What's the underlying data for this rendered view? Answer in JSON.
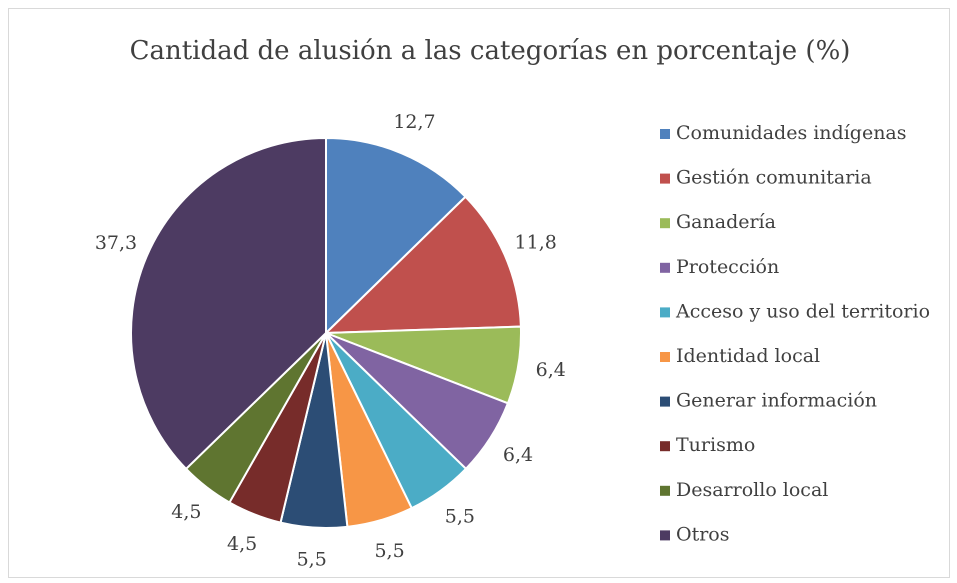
{
  "chart_data": {
    "type": "pie",
    "title": "Cantidad de alusión a las categorías en porcentaje (%)",
    "categories": [
      "Comunidades indígenas",
      "Gestión comunitaria",
      "Ganadería",
      "Protección",
      "Acceso y uso del territorio",
      "Identidad local",
      "Generar información",
      "Turismo",
      "Desarrollo local",
      "Otros"
    ],
    "values": [
      12.7,
      11.8,
      6.4,
      6.4,
      5.5,
      5.5,
      5.5,
      4.5,
      4.5,
      37.3
    ],
    "value_labels": [
      "12,7",
      "11,8",
      "6,4",
      "6,4",
      "5,5",
      "5,5",
      "5,5",
      "4,5",
      "4,5",
      "37,3"
    ],
    "colors": [
      "#4f81bd",
      "#c0504d",
      "#9bbb59",
      "#8064a2",
      "#4bacc6",
      "#f79646",
      "#2c4d75",
      "#772c2a",
      "#5f7530",
      "#4d3b62"
    ],
    "legend": "right"
  }
}
